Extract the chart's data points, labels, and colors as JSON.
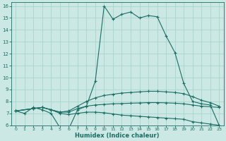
{
  "xlabel": "Humidex (Indice chaleur)",
  "bg_color": "#cce8e4",
  "grid_color": "#a8d4ce",
  "line_color": "#1a6e64",
  "xlim": [
    -0.5,
    23.5
  ],
  "ylim": [
    6,
    16.3
  ],
  "xticks": [
    0,
    1,
    2,
    3,
    4,
    5,
    6,
    7,
    8,
    9,
    10,
    11,
    12,
    13,
    14,
    15,
    16,
    17,
    18,
    19,
    20,
    21,
    22,
    23
  ],
  "yticks": [
    6,
    7,
    8,
    9,
    10,
    11,
    12,
    13,
    14,
    15,
    16
  ],
  "curve1_x": [
    0,
    1,
    2,
    3,
    4,
    5,
    6,
    7,
    8,
    9,
    10,
    11,
    12,
    13,
    14,
    15,
    16,
    17,
    18,
    19,
    20,
    21,
    22,
    23
  ],
  "curve1_y": [
    7.2,
    7.0,
    7.5,
    7.3,
    7.0,
    5.8,
    5.7,
    7.3,
    7.6,
    9.7,
    16.0,
    14.9,
    15.3,
    15.5,
    15.0,
    15.2,
    15.1,
    13.5,
    12.1,
    9.5,
    8.0,
    7.8,
    7.7,
    6.0
  ],
  "curve2_x": [
    0,
    2,
    3,
    4,
    5,
    6,
    7,
    8,
    9,
    10,
    11,
    12,
    13,
    14,
    15,
    16,
    17,
    18,
    19,
    20,
    21,
    22,
    23
  ],
  "curve2_y": [
    7.2,
    7.4,
    7.5,
    7.3,
    7.1,
    7.2,
    7.6,
    8.0,
    8.3,
    8.5,
    8.6,
    8.7,
    8.75,
    8.8,
    8.85,
    8.85,
    8.8,
    8.75,
    8.65,
    8.4,
    8.1,
    7.9,
    7.6
  ],
  "curve3_x": [
    0,
    2,
    3,
    4,
    5,
    6,
    7,
    8,
    9,
    10,
    11,
    12,
    13,
    14,
    15,
    16,
    17,
    18,
    19,
    20,
    21,
    22,
    23
  ],
  "curve3_y": [
    7.2,
    7.4,
    7.5,
    7.3,
    7.0,
    6.9,
    7.0,
    7.1,
    7.1,
    7.05,
    6.95,
    6.85,
    6.8,
    6.75,
    6.7,
    6.65,
    6.6,
    6.55,
    6.5,
    6.3,
    6.2,
    6.1,
    6.0
  ],
  "curve4_x": [
    0,
    2,
    3,
    4,
    5,
    6,
    7,
    8,
    9,
    10,
    11,
    12,
    13,
    14,
    15,
    16,
    17,
    18,
    19,
    20,
    21,
    22,
    23
  ],
  "curve4_y": [
    7.2,
    7.4,
    7.5,
    7.3,
    7.1,
    7.1,
    7.4,
    7.6,
    7.7,
    7.75,
    7.8,
    7.82,
    7.85,
    7.87,
    7.9,
    7.9,
    7.88,
    7.85,
    7.8,
    7.7,
    7.6,
    7.55,
    7.5
  ]
}
